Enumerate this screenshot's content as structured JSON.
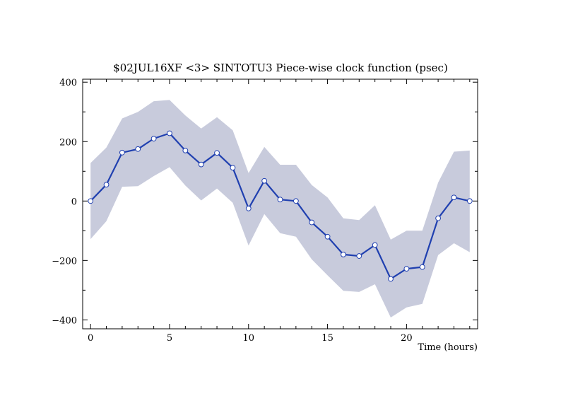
{
  "chart_data": {
    "type": "line",
    "title": "$02JUL16XF <3>  SINTOTU3  Piece-wise clock function (psec)",
    "xlabel": "Time (hours)",
    "ylabel": "",
    "xlim": [
      -0.5,
      24.5
    ],
    "ylim": [
      -430,
      410
    ],
    "x_ticks": [
      0,
      5,
      10,
      15,
      20
    ],
    "y_ticks": [
      -400,
      -200,
      0,
      200,
      400
    ],
    "x_tick_labels": [
      "0",
      "5",
      "10",
      "15",
      "20"
    ],
    "y_tick_labels": [
      "−400",
      "−200",
      "0",
      "200",
      "400"
    ],
    "grid": false,
    "colors": {
      "line": "#2040b0",
      "band": "#c8cbdc",
      "marker_fill": "#ffffff"
    },
    "series": [
      {
        "x": [
          0,
          1,
          2,
          3,
          4,
          5,
          6,
          7,
          8,
          9,
          10,
          11,
          12,
          13,
          14,
          15,
          16,
          17,
          18,
          19,
          20,
          21,
          22,
          23,
          24
        ],
        "y": [
          0,
          55,
          163,
          175,
          210,
          228,
          170,
          123,
          162,
          112,
          -25,
          68,
          5,
          0,
          -72,
          -120,
          -180,
          -185,
          -148,
          -262,
          -228,
          -222,
          -58,
          12,
          0
        ],
        "band_upper": [
          128,
          180,
          278,
          300,
          336,
          340,
          288,
          244,
          282,
          238,
          94,
          182,
          122,
          122,
          54,
          12,
          -58,
          -64,
          -14,
          -130,
          -100,
          -100,
          62,
          166,
          170
        ],
        "band_lower": [
          -128,
          -68,
          48,
          50,
          84,
          114,
          52,
          2,
          42,
          -6,
          -150,
          -44,
          -108,
          -120,
          -196,
          -250,
          -302,
          -306,
          -280,
          -392,
          -358,
          -346,
          -182,
          -142,
          -172
        ]
      }
    ]
  }
}
